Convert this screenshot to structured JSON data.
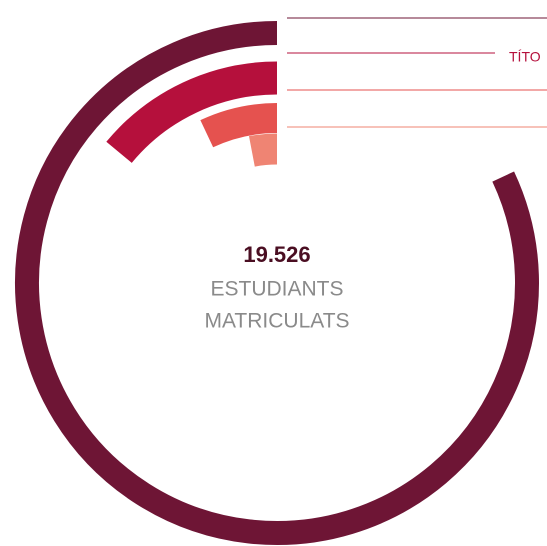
{
  "chart_data": {
    "type": "radial_bar",
    "center_value": "19.526",
    "center_label": [
      "ESTUDIANTS",
      "MATRICULATS"
    ],
    "series": [
      {
        "color": "#6e1535",
        "values": [
          82
        ]
      },
      {
        "name": "TÍTO",
        "color": "#b5103c",
        "values": [
          14
        ]
      },
      {
        "color": "#e5524f",
        "values": [
          7
        ]
      },
      {
        "color": "#ef8473",
        "values": [
          3
        ]
      }
    ]
  }
}
